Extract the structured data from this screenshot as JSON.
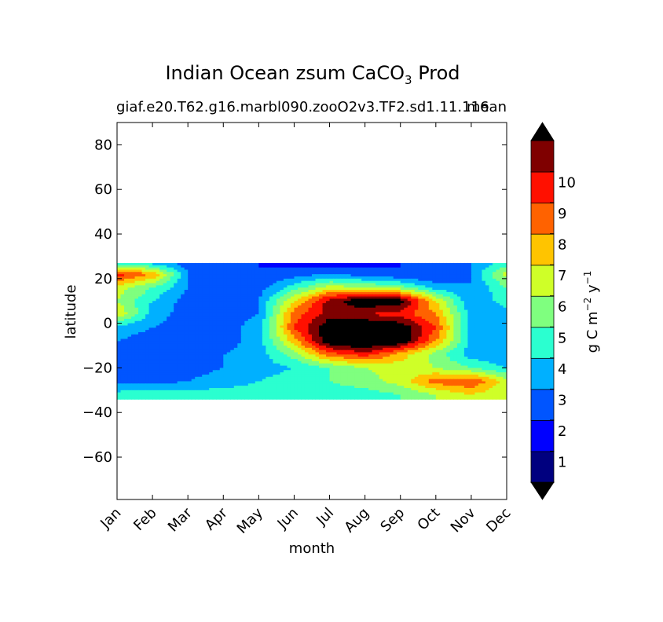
{
  "chart_data": {
    "type": "heatmap",
    "title_main": "Indian Ocean zsum CaCO",
    "title_sub": "3",
    "title_tail": " Prod",
    "subtitle_left": "giaf.e20.T62.g16.marbl090.zooO2v3.TF2.sd1.11.116",
    "subtitle_right": "mean",
    "xlabel": "month",
    "ylabel": "latitude",
    "x_ticks": [
      "Jan",
      "Feb",
      "Mar",
      "Apr",
      "May",
      "Jun",
      "Jul",
      "Aug",
      "Sep",
      "Oct",
      "Nov",
      "Dec"
    ],
    "y_ticks": [
      80,
      60,
      40,
      20,
      0,
      -20,
      -40,
      -60
    ],
    "xlim": [
      0,
      11
    ],
    "ylim": [
      -79,
      90
    ],
    "data_lat_range": [
      -34,
      27
    ],
    "grid": false,
    "colorbar": {
      "label_main": "g C m",
      "label_exp1": "−2",
      "label_mid": "  y",
      "label_exp2": "−1",
      "levels": [
        0,
        1,
        2,
        3,
        4,
        5,
        6,
        7,
        8,
        9,
        10,
        11
      ],
      "tick_labels": [
        "1",
        "2",
        "3",
        "4",
        "5",
        "6",
        "7",
        "8",
        "9",
        "10"
      ],
      "colors": [
        "#00007f",
        "#0000ff",
        "#0055ff",
        "#00b0ff",
        "#2bffd0",
        "#7fff7f",
        "#cfff28",
        "#ffc400",
        "#ff6200",
        "#ff1000",
        "#7f0000"
      ],
      "under_color": "#000000",
      "over_color": "#000000",
      "extend": "both"
    },
    "values_lat": [
      27,
      22,
      16,
      10,
      4,
      -2,
      -8,
      -14,
      -20,
      -26,
      -32
    ],
    "values": [
      [
        4.5,
        3.5,
        2.5,
        2.0,
        2.0,
        1.5,
        1.5,
        1.5,
        2.0,
        2.5,
        3.0,
        4.5
      ],
      [
        9.5,
        8.0,
        3.0,
        2.5,
        2.0,
        2.5,
        3.0,
        2.5,
        2.0,
        2.0,
        3.0,
        6.5
      ],
      [
        6.5,
        5.0,
        3.0,
        2.5,
        2.5,
        4.5,
        6.5,
        6.0,
        5.5,
        3.5,
        3.0,
        5.0
      ],
      [
        6.0,
        4.0,
        2.5,
        2.5,
        3.0,
        7.0,
        10.5,
        12.0,
        11.5,
        7.0,
        3.0,
        4.5
      ],
      [
        7.0,
        3.5,
        2.5,
        2.5,
        3.0,
        8.5,
        10.5,
        10.0,
        9.5,
        8.0,
        3.5,
        3.5
      ],
      [
        3.5,
        3.0,
        2.5,
        2.5,
        3.5,
        9.0,
        12.0,
        12.5,
        12.0,
        9.0,
        3.5,
        3.0
      ],
      [
        3.0,
        2.5,
        2.5,
        2.5,
        3.5,
        7.5,
        12.0,
        12.5,
        12.0,
        8.0,
        3.5,
        3.0
      ],
      [
        2.5,
        2.5,
        2.5,
        3.0,
        3.5,
        5.5,
        8.5,
        9.5,
        7.5,
        5.5,
        3.5,
        3.0
      ],
      [
        2.0,
        2.0,
        2.5,
        3.0,
        3.5,
        4.0,
        5.0,
        6.0,
        6.5,
        6.0,
        5.0,
        4.0
      ],
      [
        2.5,
        2.5,
        3.0,
        3.5,
        4.0,
        4.5,
        5.0,
        5.5,
        6.5,
        8.5,
        9.0,
        6.5
      ],
      [
        4.5,
        4.5,
        4.5,
        4.5,
        4.5,
        4.5,
        4.5,
        4.5,
        5.0,
        6.0,
        7.0,
        6.0
      ]
    ]
  }
}
